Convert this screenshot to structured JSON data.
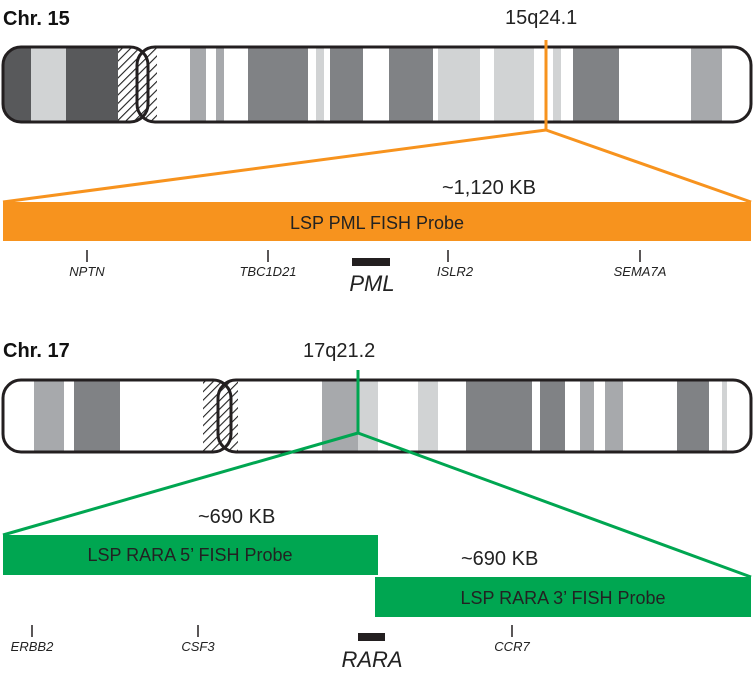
{
  "chr15": {
    "title": "Chr. 15",
    "band": "15q24.1",
    "size": "~1,120 KB",
    "probe": "LSP PML FISH Probe",
    "target": "PML",
    "genes": [
      "NPTN",
      "TBC1D21",
      "ISLR2",
      "SEMA7A"
    ],
    "color": "#f7931e"
  },
  "chr17": {
    "title": "Chr. 17",
    "band": "17q21.2",
    "probe5": {
      "size": "~690 KB",
      "label": "LSP RARA 5’ FISH Probe"
    },
    "probe3": {
      "size": "~690 KB",
      "label": "LSP RARA 3’ FISH Probe"
    },
    "target": "RARA",
    "genes": [
      "ERBB2",
      "CSF3",
      "CCR7"
    ],
    "color": "#00a651"
  }
}
